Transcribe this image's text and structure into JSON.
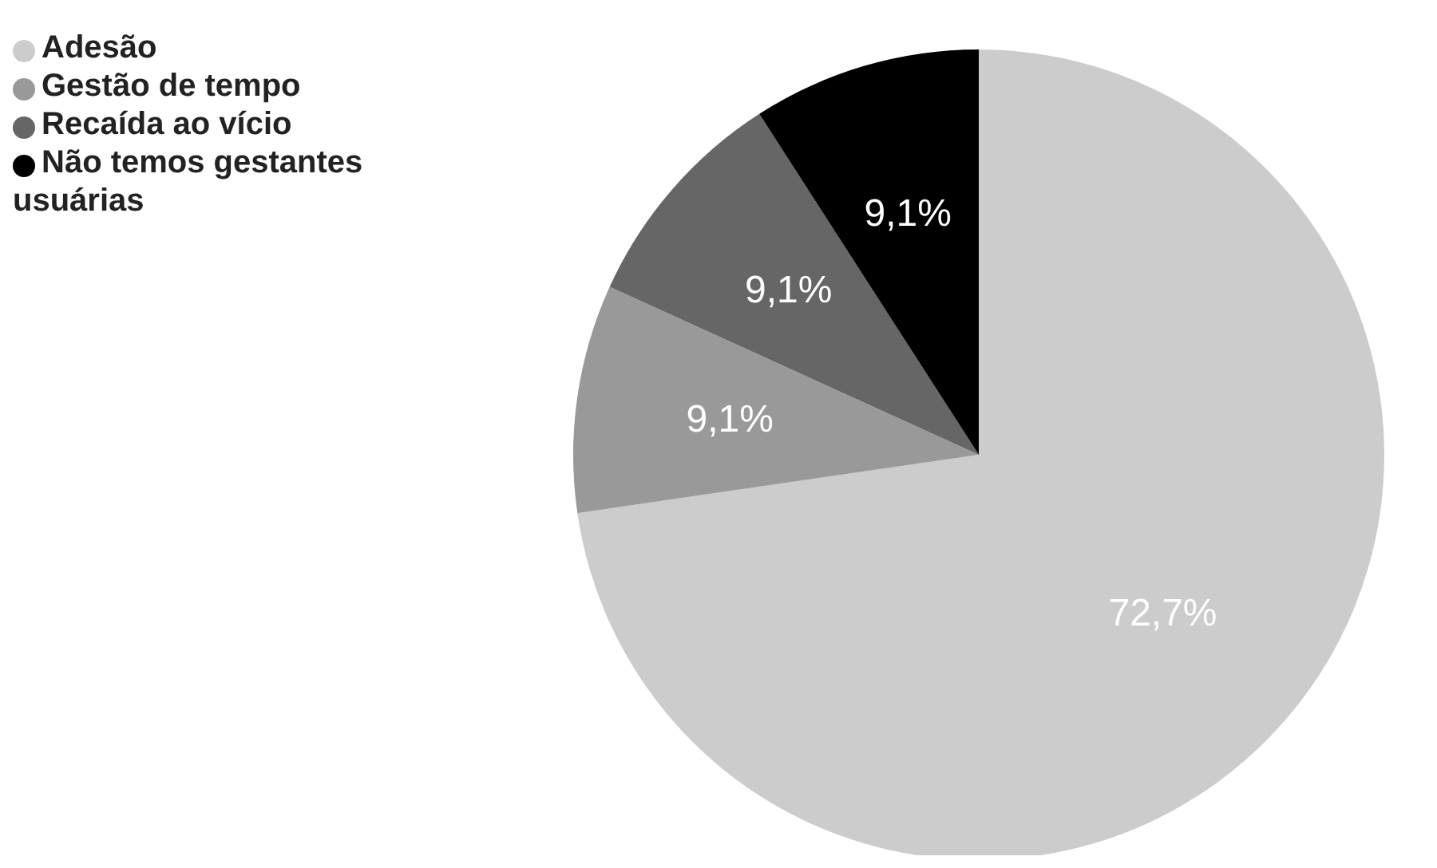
{
  "chart_data": {
    "type": "pie",
    "categories": [
      "Adesão",
      "Gestão de tempo",
      "Recaída ao vício",
      "Não temos gestantes usuárias"
    ],
    "values": [
      72.7,
      9.1,
      9.1,
      9.1
    ],
    "colors": [
      "#cccccc",
      "#999999",
      "#666666",
      "#000000"
    ],
    "value_labels": [
      "72,7%",
      "9,1%",
      "9,1%",
      "9,1%"
    ],
    "legend": "top left"
  }
}
